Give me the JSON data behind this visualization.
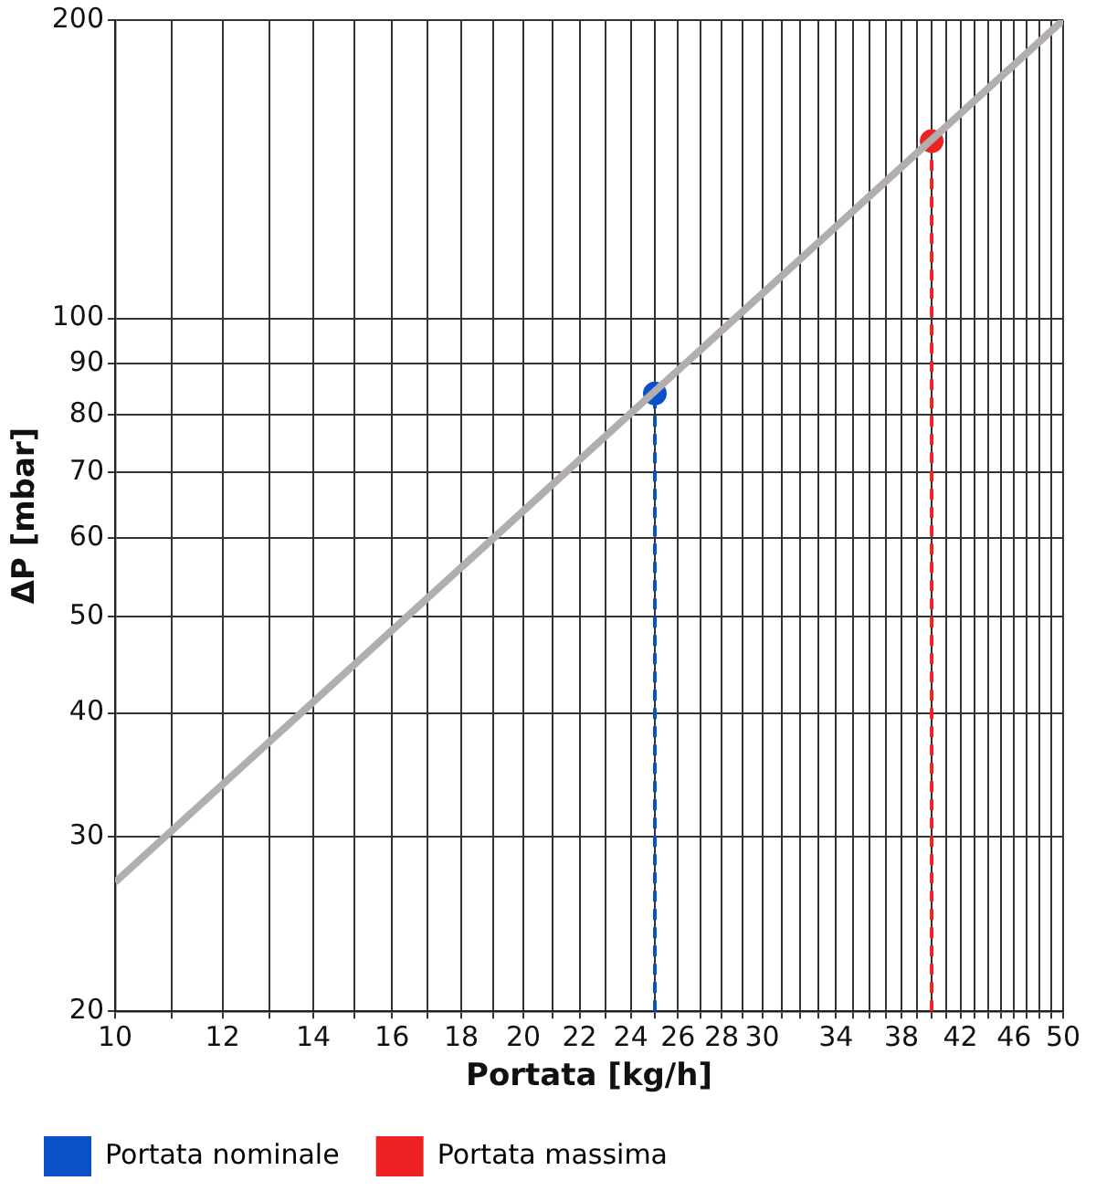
{
  "chart_data": {
    "type": "scatter",
    "xlabel": "Portata [kg/h]",
    "ylabel": "ΔP [mbar]",
    "log": "xy",
    "grid": true,
    "legend": "bottom",
    "marker": "circle",
    "xlim": [
      10,
      50
    ],
    "ylim": [
      20,
      200
    ],
    "xticks": [
      10,
      {
        "value": 11,
        "label": null
      },
      12,
      {
        "value": 13,
        "label": null
      },
      14,
      {
        "value": 15,
        "label": null
      },
      16,
      {
        "value": 17,
        "label": null
      },
      18,
      {
        "value": 19,
        "label": null
      },
      20,
      {
        "value": 21,
        "label": null
      },
      22,
      {
        "value": 23,
        "label": null
      },
      24,
      {
        "value": 25,
        "label": null
      },
      26,
      {
        "value": 27,
        "label": null
      },
      28,
      {
        "value": 29,
        "label": null
      },
      30,
      {
        "value": 31,
        "label": null
      },
      {
        "value": 32,
        "label": null
      },
      {
        "value": 33,
        "label": null
      },
      34,
      {
        "value": 35,
        "label": null
      },
      {
        "value": 36,
        "label": null
      },
      {
        "value": 37,
        "label": null
      },
      38,
      {
        "value": 39,
        "label": null
      },
      {
        "value": 40,
        "label": null
      },
      {
        "value": 41,
        "label": null
      },
      42,
      {
        "value": 43,
        "label": null
      },
      {
        "value": 44,
        "label": null
      },
      {
        "value": 45,
        "label": null
      },
      46,
      {
        "value": 47,
        "label": null
      },
      {
        "value": 48,
        "label": null
      },
      {
        "value": 49,
        "label": null
      },
      50
    ],
    "yticks": [
      20,
      30,
      40,
      50,
      60,
      70,
      80,
      90,
      100,
      200
    ],
    "series": [
      {
        "type": "line",
        "marker": "none",
        "color": "#b3aeae",
        "x": [
          10,
          50
        ],
        "values": [
          27,
          200
        ]
      },
      {
        "name": "Portata nominale",
        "color": "#0a50c8",
        "x": [
          25
        ],
        "values": [
          84
        ]
      },
      {
        "name": "Portata massima",
        "color": "#ee2222",
        "x": [
          40
        ],
        "values": [
          151
        ]
      }
    ],
    "ref_lines": [
      {
        "axis": "x",
        "value": 25,
        "color": "#0a50c8",
        "line_style": "dashed"
      },
      {
        "axis": "x",
        "value": 40,
        "color": "#ee2222",
        "line_style": "dashed"
      }
    ]
  }
}
